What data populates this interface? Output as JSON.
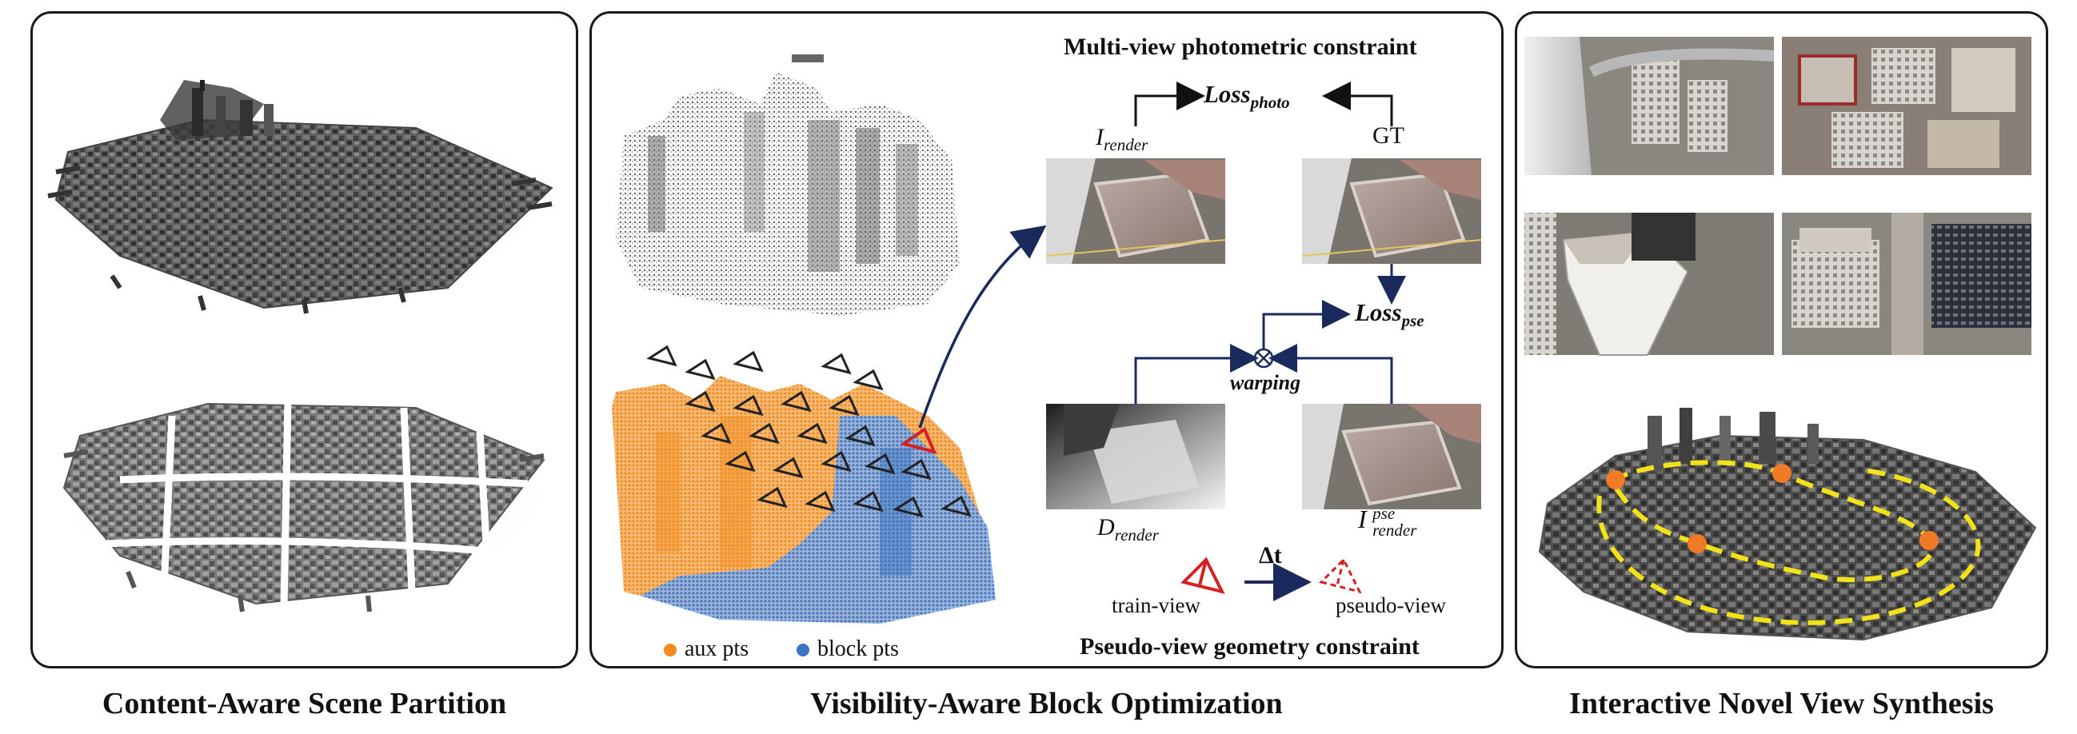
{
  "captions": {
    "left": "Content-Aware Scene Partition",
    "middle": "Visibility-Aware Block Optimization",
    "right": "Interactive Novel View Synthesis"
  },
  "middle": {
    "photometric_title": "Multi-view photometric constraint",
    "loss_photo": "Loss",
    "loss_photo_sub": "photo",
    "i_render": "I",
    "i_render_sub": "render",
    "gt": "GT",
    "loss_pse": "Loss",
    "loss_pse_sub": "pse",
    "warping": "warping",
    "d_render": "D",
    "d_render_sub": "render",
    "i_pse": "I",
    "i_pse_sup": "pse",
    "i_pse_sub": "render",
    "delta_t": "Δt",
    "train_view": "train-view",
    "pseudo_view": "pseudo-view",
    "geometry_title": "Pseudo-view geometry constraint",
    "legend": {
      "aux": "aux pts",
      "block": "block pts"
    }
  },
  "colors": {
    "aux": "#f28a1e",
    "block": "#3b74c2",
    "arrow": "#1b2a5c",
    "camera_red": "#d42020",
    "path_yellow": "#f2e21a",
    "marker_orange": "#f07a26"
  }
}
